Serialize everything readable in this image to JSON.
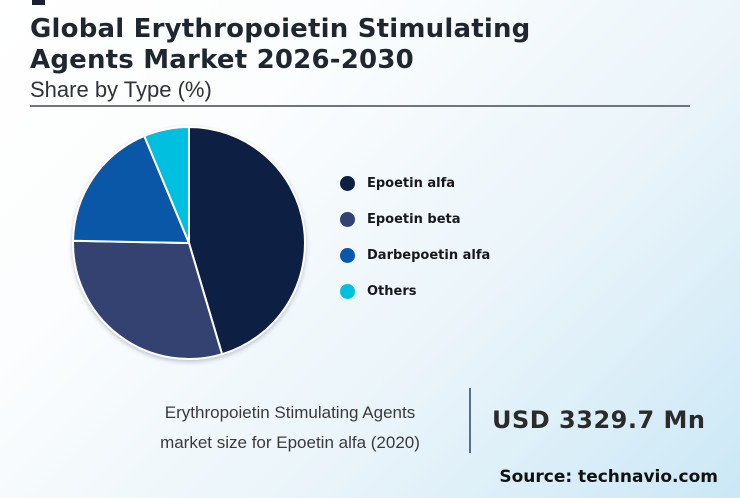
{
  "header": {
    "title_line1": "Global Erythropoietin Stimulating",
    "title_line2": "Agents Market 2026-2030",
    "subtitle": "Share by Type (%)"
  },
  "chart_data": {
    "type": "pie",
    "title": "Global Erythropoietin Stimulating Agents Market 2026-2030",
    "subtitle": "Share by Type (%)",
    "labels": [
      "Epoetin alfa",
      "Epoetin beta",
      "Darbepoetin alfa",
      "Others"
    ],
    "values": [
      45.4,
      29.9,
      18.4,
      6.3
    ],
    "unit": "%",
    "colors": [
      "#0d1f42",
      "#344271",
      "#0b57a7",
      "#00bfdf"
    ],
    "start_angle_deg": 0,
    "direction": "clockwise",
    "slice_border_color": "#ffffff",
    "legend_position": "right"
  },
  "legend": {
    "items": [
      {
        "label": "Epoetin alfa",
        "color": "#0d1f42"
      },
      {
        "label": "Epoetin beta",
        "color": "#344271"
      },
      {
        "label": "Darbepoetin alfa",
        "color": "#0b57a7"
      },
      {
        "label": "Others",
        "color": "#00bfdf"
      }
    ]
  },
  "footer": {
    "caption_line1": "Erythropoietin Stimulating Agents",
    "caption_line2": "market size for Epoetin alfa (2020)",
    "highlight_value": "USD 3329.7 Mn",
    "source": "Source: technavio.com"
  },
  "style": {
    "title_color": "#1f2630",
    "divider_color": "#70757c",
    "vertical_divider_color": "#5d6e87",
    "background_start": "#ffffff",
    "background_end": "#cbe8f6"
  }
}
